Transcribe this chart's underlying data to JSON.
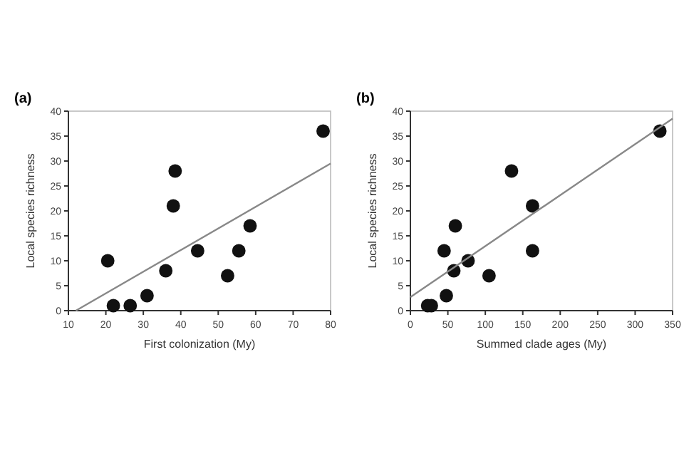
{
  "chart_data": [
    {
      "type": "scatter",
      "title": "(a)",
      "xlabel": "First colonization (My)",
      "ylabel": "Local species richness",
      "xlim": [
        10,
        80
      ],
      "ylim": [
        0,
        40
      ],
      "xticks": [
        10,
        20,
        30,
        40,
        50,
        60,
        70,
        80
      ],
      "yticks": [
        0,
        5,
        10,
        15,
        20,
        25,
        30,
        35,
        40
      ],
      "grid": false,
      "series": [
        {
          "color": "#111111",
          "marker": "circle",
          "x": [
            20.5,
            22,
            26.5,
            31,
            36,
            38,
            38.5,
            44.5,
            52.5,
            55.5,
            58.5,
            78
          ],
          "values": [
            10,
            1,
            1,
            3,
            8,
            21,
            28,
            12,
            7,
            12,
            17,
            36
          ]
        },
        {
          "type": "line",
          "color": "#888888",
          "marker": "none",
          "x": [
            12,
            80
          ],
          "values": [
            0,
            29.5
          ]
        }
      ]
    },
    {
      "type": "scatter",
      "title": "(b)",
      "xlabel": "Summed clade ages (My)",
      "ylabel": "Local species richness",
      "xlim": [
        0,
        350
      ],
      "ylim": [
        0,
        40
      ],
      "xticks": [
        0,
        50,
        100,
        150,
        200,
        250,
        300,
        350
      ],
      "yticks": [
        0,
        5,
        10,
        15,
        20,
        25,
        30,
        35,
        40
      ],
      "grid": false,
      "series": [
        {
          "color": "#111111",
          "marker": "circle",
          "x": [
            23,
            28,
            48,
            45,
            58,
            60,
            77,
            105,
            135,
            163,
            163,
            333
          ],
          "values": [
            1,
            1,
            3,
            12,
            8,
            17,
            10,
            7,
            28,
            21,
            12,
            36
          ]
        },
        {
          "type": "line",
          "color": "#888888",
          "marker": "none",
          "x": [
            0,
            350
          ],
          "values": [
            2.7,
            38.5
          ]
        }
      ]
    }
  ]
}
